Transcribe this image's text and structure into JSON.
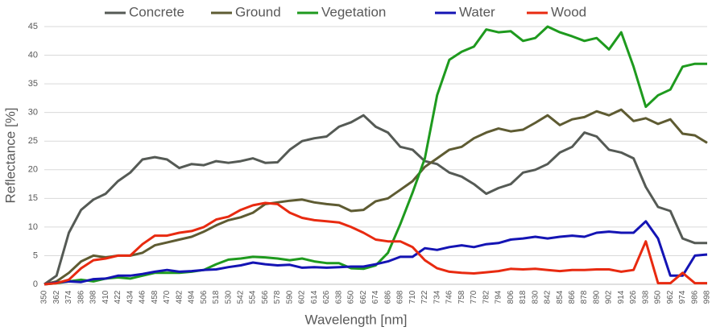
{
  "chart_data": {
    "type": "line",
    "x_label": "Wavelength [nm]",
    "y_label": "Reflectance [%]",
    "categories": [
      "350",
      "362",
      "374",
      "386",
      "398",
      "410",
      "422",
      "434",
      "446",
      "458",
      "470",
      "482",
      "494",
      "506",
      "518",
      "530",
      "542",
      "554",
      "566",
      "578",
      "590",
      "602",
      "614",
      "626",
      "638",
      "650",
      "662",
      "674",
      "686",
      "698",
      "710",
      "722",
      "734",
      "746",
      "758",
      "770",
      "782",
      "794",
      "806",
      "818",
      "830",
      "842",
      "854",
      "866",
      "878",
      "890",
      "902",
      "914",
      "926",
      "938",
      "950",
      "962",
      "974",
      "986",
      "998"
    ],
    "ylim": [
      0,
      45
    ],
    "yticks": [
      0,
      5,
      10,
      15,
      20,
      25,
      30,
      35,
      40,
      45
    ],
    "grid": true,
    "legend": "top",
    "series": [
      {
        "name": "Concrete",
        "color": "#555a55",
        "values": [
          0,
          1.5,
          9,
          13,
          14.8,
          15.8,
          18,
          19.5,
          21.8,
          22.2,
          21.8,
          20.3,
          21,
          20.8,
          21.5,
          21.2,
          21.5,
          22,
          21.2,
          21.3,
          23.5,
          25,
          25.5,
          25.8,
          27.5,
          28.3,
          29.5,
          27.5,
          26.5,
          24,
          23.5,
          21.5,
          21,
          19.5,
          18.8,
          17.5,
          15.8,
          16.8,
          17.5,
          19.5,
          20,
          21,
          23,
          24,
          26.5,
          25.8,
          23.5,
          23,
          22,
          17,
          13.5,
          12.8,
          8,
          7.2,
          7.2
        ]
      },
      {
        "name": "Ground",
        "color": "#5e5b32",
        "values": [
          0,
          0.5,
          2,
          4,
          5,
          4.7,
          5,
          5,
          5.5,
          6.8,
          7.3,
          7.8,
          8.3,
          9.2,
          10.3,
          11.2,
          11.7,
          12.5,
          14,
          14.3,
          14.6,
          14.8,
          14.3,
          14,
          13.8,
          12.8,
          13,
          14.5,
          15,
          16.5,
          18,
          20.5,
          22,
          23.5,
          24,
          25.5,
          26.5,
          27.2,
          26.7,
          27,
          28.2,
          29.5,
          27.8,
          28.8,
          29.2,
          30.2,
          29.5,
          30.5,
          28.5,
          29,
          28,
          28.8,
          26.3,
          26,
          24.7
        ]
      },
      {
        "name": "Vegetation",
        "color": "#1e9a1e",
        "values": [
          0,
          0.2,
          0.5,
          0.8,
          0.5,
          1,
          1.2,
          1,
          1.5,
          2,
          2,
          2,
          2.2,
          2.5,
          3.5,
          4.3,
          4.5,
          4.8,
          4.7,
          4.5,
          4.2,
          4.5,
          4,
          3.7,
          3.7,
          2.8,
          2.7,
          3.3,
          5.5,
          10.5,
          16,
          22,
          33,
          39.2,
          40.6,
          41.5,
          44.5,
          44,
          44.2,
          42.5,
          43,
          45,
          44,
          43.3,
          42.5,
          43,
          41,
          44,
          38,
          31,
          33,
          34,
          38,
          38.5,
          38.5
        ]
      },
      {
        "name": "Water",
        "color": "#1414b4",
        "values": [
          0,
          0.3,
          0.5,
          0.4,
          0.9,
          1,
          1.5,
          1.5,
          1.8,
          2.2,
          2.5,
          2.2,
          2.3,
          2.5,
          2.6,
          3,
          3.3,
          3.8,
          3.5,
          3.3,
          3.4,
          2.9,
          3,
          2.9,
          3,
          3.1,
          3.1,
          3.5,
          4,
          4.8,
          4.8,
          6.3,
          6,
          6.5,
          6.8,
          6.5,
          7,
          7.2,
          7.8,
          8,
          8.3,
          8,
          8.3,
          8.5,
          8.3,
          9,
          9.2,
          9,
          9,
          11,
          8,
          1.5,
          1.5,
          5,
          5.2
        ]
      },
      {
        "name": "Wood",
        "color": "#e82a10",
        "values": [
          0,
          0.2,
          0.8,
          2.8,
          4.2,
          4.5,
          5,
          5,
          7,
          8.5,
          8.5,
          9,
          9.3,
          10,
          11.3,
          11.8,
          13,
          13.8,
          14.2,
          14,
          12.5,
          11.6,
          11.2,
          11,
          10.8,
          10,
          9,
          7.8,
          7.5,
          7.5,
          6.5,
          4.2,
          2.8,
          2.2,
          2,
          1.9,
          2.1,
          2.3,
          2.7,
          2.6,
          2.7,
          2.5,
          2.3,
          2.5,
          2.5,
          2.6,
          2.6,
          2.2,
          2.5,
          7.5,
          0.2,
          0.2,
          2,
          0.2,
          0.2
        ]
      }
    ]
  }
}
